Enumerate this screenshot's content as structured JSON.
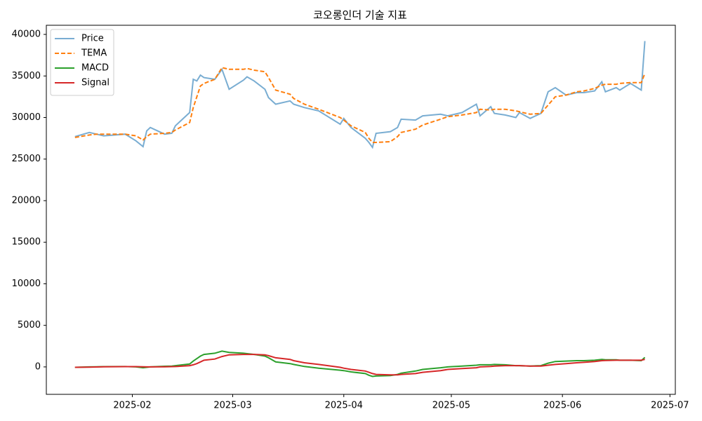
{
  "chart_data": {
    "type": "line",
    "title": "코오롱인더 기술 지표",
    "x": [
      16,
      20,
      22,
      24,
      30,
      33,
      35,
      36,
      37,
      41,
      43,
      44,
      48,
      49,
      50,
      51,
      52,
      55,
      57,
      59,
      63,
      64,
      66,
      69,
      70,
      72,
      76,
      77,
      80,
      84,
      90,
      91,
      93,
      97,
      98,
      99,
      100,
      104,
      106,
      107,
      111,
      113,
      118,
      120,
      124,
      128,
      129,
      132,
      133,
      136,
      139,
      140,
      143,
      146,
      148,
      150,
      153,
      156,
      158,
      161,
      163,
      164,
      167,
      168,
      171,
      174,
      175
    ],
    "series": [
      {
        "name": "Price",
        "color": "#1f77b4",
        "alpha": 0.6,
        "style": "solid",
        "values": [
          27700,
          28200,
          28000,
          27800,
          28000,
          27200,
          26500,
          28400,
          28800,
          28000,
          28100,
          29000,
          30600,
          34600,
          34400,
          35100,
          34800,
          34600,
          35800,
          33400,
          34500,
          34900,
          34400,
          33400,
          32400,
          31600,
          32000,
          31600,
          31200,
          30800,
          29200,
          29900,
          28800,
          27500,
          27000,
          26400,
          28100,
          28300,
          28800,
          29800,
          29700,
          30200,
          30400,
          30200,
          30600,
          31600,
          30200,
          31300,
          30500,
          30300,
          30000,
          30600,
          29900,
          30500,
          33100,
          33600,
          32700,
          33000,
          33000,
          33200,
          34300,
          33100,
          33600,
          33300,
          34100,
          33300,
          39200
        ]
      },
      {
        "name": "TEMA",
        "color": "#ff7f0e",
        "alpha": 1,
        "style": "dashed",
        "values": [
          27600,
          27900,
          28000,
          28000,
          28000,
          27800,
          27300,
          27700,
          28000,
          28100,
          28200,
          28500,
          29400,
          31200,
          32500,
          33800,
          34100,
          34600,
          36000,
          35800,
          35800,
          35900,
          35700,
          35500,
          34800,
          33300,
          32800,
          32300,
          31600,
          31000,
          30000,
          29700,
          29000,
          28200,
          27500,
          27000,
          27000,
          27100,
          27700,
          28200,
          28600,
          29100,
          29800,
          30100,
          30300,
          30600,
          31000,
          30900,
          31000,
          31000,
          30800,
          30700,
          30400,
          30500,
          31500,
          32500,
          32700,
          33100,
          33200,
          33500,
          33900,
          34000,
          34000,
          34100,
          34200,
          34200,
          35300
        ]
      },
      {
        "name": "MACD",
        "color": "#2ca02c",
        "alpha": 1,
        "style": "solid",
        "values": [
          -50,
          0,
          20,
          30,
          40,
          0,
          -100,
          -50,
          0,
          80,
          100,
          150,
          350,
          700,
          1000,
          1300,
          1500,
          1650,
          1900,
          1750,
          1650,
          1600,
          1500,
          1300,
          1100,
          600,
          400,
          300,
          50,
          -150,
          -400,
          -450,
          -600,
          -800,
          -1000,
          -1150,
          -1100,
          -1050,
          -900,
          -750,
          -500,
          -300,
          -100,
          0,
          100,
          200,
          250,
          250,
          300,
          250,
          150,
          150,
          100,
          150,
          450,
          650,
          700,
          750,
          750,
          800,
          900,
          850,
          850,
          800,
          800,
          750,
          1150
        ]
      },
      {
        "name": "Signal",
        "color": "#d62728",
        "alpha": 1,
        "style": "solid",
        "values": [
          -50,
          -30,
          -10,
          10,
          30,
          30,
          10,
          0,
          0,
          20,
          30,
          40,
          150,
          250,
          400,
          600,
          800,
          950,
          1250,
          1450,
          1500,
          1500,
          1500,
          1450,
          1350,
          1100,
          900,
          750,
          500,
          300,
          -50,
          -150,
          -300,
          -500,
          -650,
          -800,
          -900,
          -950,
          -950,
          -900,
          -800,
          -650,
          -450,
          -300,
          -200,
          -100,
          0,
          50,
          100,
          150,
          150,
          150,
          100,
          100,
          200,
          300,
          400,
          500,
          550,
          650,
          750,
          780,
          800,
          800,
          800,
          800,
          900
        ]
      }
    ],
    "xlim": [
      8,
      183.5
    ],
    "xticks": [
      {
        "value": 32,
        "label": "2025-02"
      },
      {
        "value": 60,
        "label": "2025-03"
      },
      {
        "value": 91,
        "label": "2025-04"
      },
      {
        "value": 121,
        "label": "2025-05"
      },
      {
        "value": 152,
        "label": "2025-06"
      },
      {
        "value": 182,
        "label": "2025-07"
      }
    ],
    "ylim": [
      -3300,
      41100
    ],
    "yticks": [
      0,
      5000,
      10000,
      15000,
      20000,
      25000,
      30000,
      35000,
      40000
    ],
    "grid": false,
    "legend": "upper left"
  }
}
